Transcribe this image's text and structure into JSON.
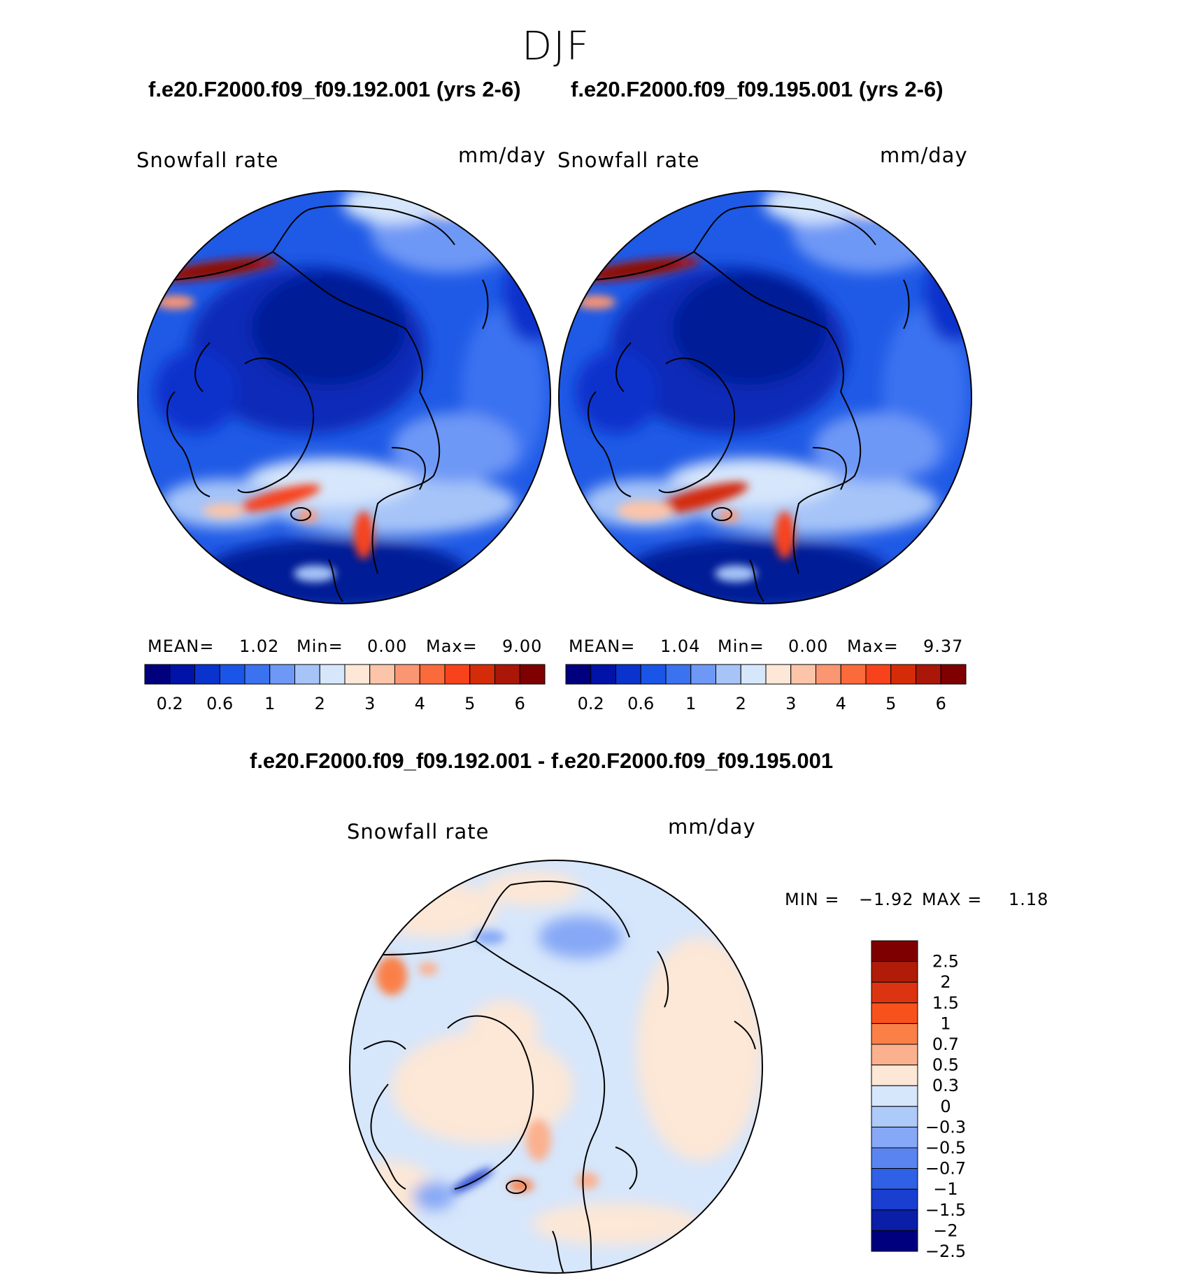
{
  "season": "DJF",
  "panels": [
    {
      "case_title": "f.e20.F2000.f09_f09.192.001 (yrs 2-6)",
      "variable": "Snowfall rate",
      "units": "mm/day",
      "stats": {
        "mean_label": "MEAN=",
        "mean": "1.02",
        "min_label": "Min=",
        "min": "0.00",
        "max_label": "Max=",
        "max": "9.00"
      }
    },
    {
      "case_title": "f.e20.F2000.f09_f09.195.001 (yrs 2-6)",
      "variable": "Snowfall rate",
      "units": "mm/day",
      "stats": {
        "mean_label": "MEAN=",
        "mean": "1.04",
        "min_label": "Min=",
        "min": "0.00",
        "max_label": "Max=",
        "max": "9.37"
      }
    }
  ],
  "colorbar": {
    "colors": [
      "#00007f",
      "#0012a8",
      "#0933cc",
      "#1a55e8",
      "#3a72f0",
      "#6e98f6",
      "#a6c4f8",
      "#d6e6fb",
      "#fde7d6",
      "#fcc4a8",
      "#fb9672",
      "#fa6a3a",
      "#f8421c",
      "#d42c08",
      "#aa1608",
      "#7f0000"
    ],
    "labels": [
      "0.2",
      "0.6",
      "1",
      "2",
      "3",
      "4",
      "5",
      "6"
    ]
  },
  "difference": {
    "title": "f.e20.F2000.f09_f09.192.001 - f.e20.F2000.f09_f09.195.001",
    "variable": "Snowfall rate",
    "units": "mm/day",
    "min_label": "MIN =",
    "min": "−1.92",
    "max_label": "MAX =",
    "max": "1.18",
    "colorbar": {
      "colors": [
        "#7f0000",
        "#b01c08",
        "#dc3410",
        "#f8521c",
        "#fa8048",
        "#fbb08e",
        "#fde7d6",
        "#d6e6fb",
        "#adcaf8",
        "#86a8f6",
        "#5a84f0",
        "#3060e6",
        "#1a3ed0",
        "#0a1ea8",
        "#00007f"
      ],
      "labels": [
        "2.5",
        "2",
        "1.5",
        "1",
        "0.7",
        "0.5",
        "0.3",
        "0",
        "−0.3",
        "−0.5",
        "−0.7",
        "−1",
        "−1.5",
        "−2",
        "−2.5"
      ]
    }
  }
}
